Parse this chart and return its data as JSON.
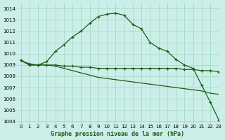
{
  "title": "Graphe pression niveau de la mer (hPa)",
  "background_color": "#cceee8",
  "grid_color": "#aaddcc",
  "line_color": "#1a5c1a",
  "xlim": [
    -0.5,
    23
  ],
  "ylim": [
    1003.8,
    1014.5
  ],
  "yticks": [
    1004,
    1005,
    1006,
    1007,
    1008,
    1009,
    1010,
    1011,
    1012,
    1013,
    1014
  ],
  "xticks": [
    0,
    1,
    2,
    3,
    4,
    5,
    6,
    7,
    8,
    9,
    10,
    11,
    12,
    13,
    14,
    15,
    16,
    17,
    18,
    19,
    20,
    21,
    22,
    23
  ],
  "series1_x": [
    0,
    1,
    2,
    3,
    4,
    5,
    6,
    7,
    8,
    9,
    10,
    11,
    12,
    13,
    14,
    15,
    16,
    17,
    18,
    19,
    20,
    21,
    22,
    23
  ],
  "series1_y": [
    1009.4,
    1009.1,
    1009.0,
    1009.3,
    1010.2,
    1010.8,
    1011.5,
    1012.0,
    1012.7,
    1013.3,
    1013.5,
    1013.6,
    1013.4,
    1012.6,
    1012.2,
    1011.0,
    1010.5,
    1010.2,
    1009.5,
    1009.0,
    1008.7,
    1007.2,
    1005.7,
    1004.1
  ],
  "series2_x": [
    0,
    1,
    2,
    3,
    4,
    5,
    6,
    7,
    8,
    9,
    10,
    11,
    12,
    13,
    14,
    15,
    16,
    17,
    18,
    19,
    20,
    21,
    22,
    23
  ],
  "series2_y": [
    1009.4,
    1009.0,
    1009.0,
    1009.0,
    1009.0,
    1008.9,
    1008.9,
    1008.8,
    1008.8,
    1008.7,
    1008.7,
    1008.7,
    1008.7,
    1008.7,
    1008.7,
    1008.7,
    1008.7,
    1008.7,
    1008.7,
    1008.6,
    1008.6,
    1008.5,
    1008.5,
    1008.4
  ],
  "series3_x": [
    0,
    1,
    2,
    3,
    4,
    5,
    6,
    7,
    8,
    9,
    10,
    11,
    12,
    13,
    14,
    15,
    16,
    17,
    18,
    19,
    20,
    21,
    22,
    23
  ],
  "series3_y": [
    1009.4,
    1009.0,
    1009.0,
    1009.0,
    1008.9,
    1008.7,
    1008.5,
    1008.3,
    1008.1,
    1007.9,
    1007.8,
    1007.7,
    1007.6,
    1007.5,
    1007.4,
    1007.3,
    1007.2,
    1007.1,
    1007.0,
    1006.9,
    1006.8,
    1006.7,
    1006.5,
    1006.4
  ]
}
